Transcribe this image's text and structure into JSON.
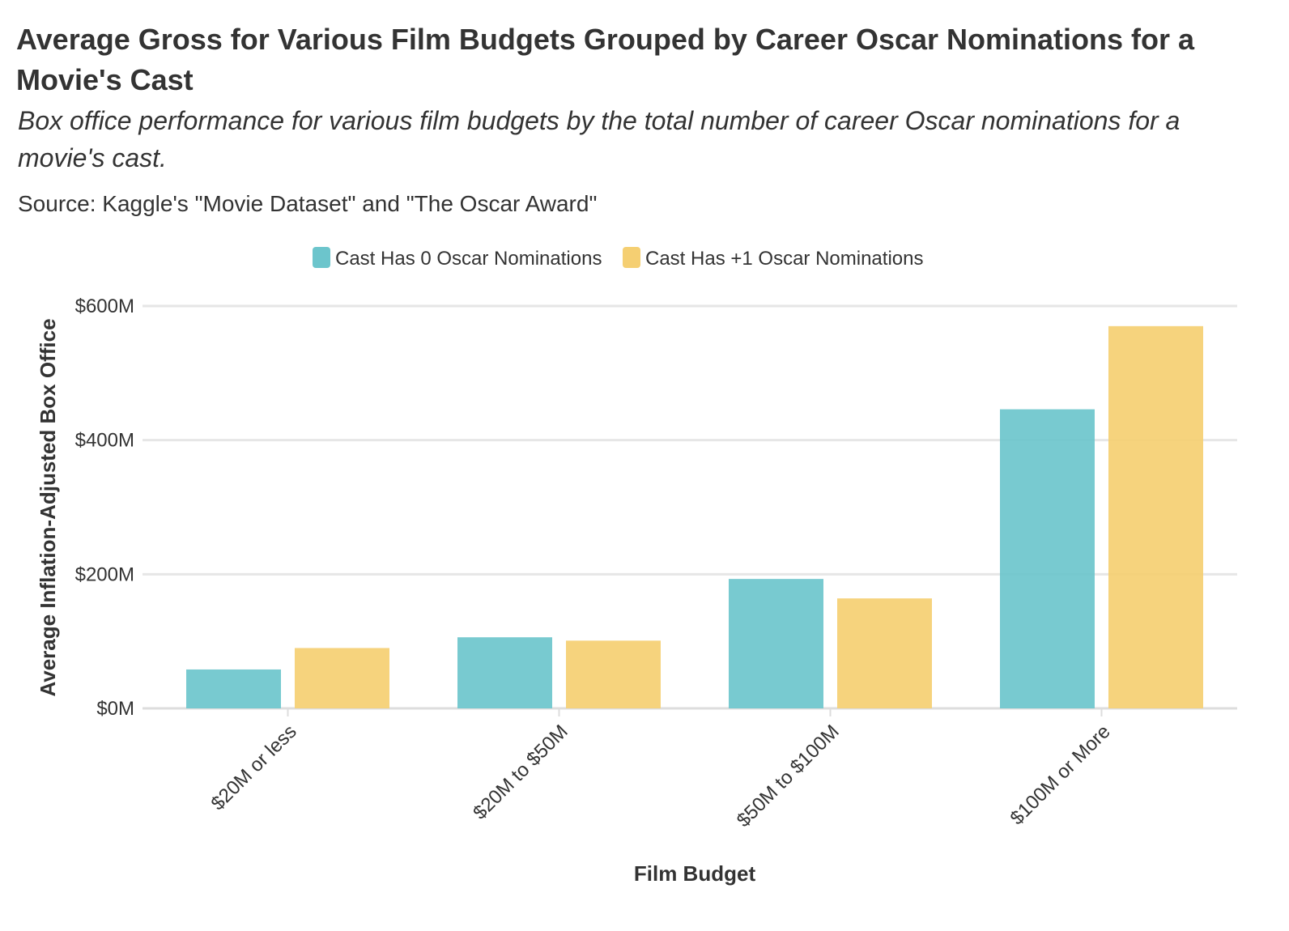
{
  "title": "Average Gross for Various Film Budgets Grouped by Career Oscar Nominations for a Movie's Cast",
  "subtitle": "Box office performance for various film budgets by the total number of career Oscar nominations for a movie's cast.",
  "source": "Source: Kaggle's \"Movie Dataset\" and \"The Oscar Award\"",
  "colors": {
    "series_0": "#6cc5cc",
    "series_1": "#f5cf72",
    "grid": "#e6e6e6",
    "axis": "#dddddd"
  },
  "chart_data": {
    "type": "bar",
    "categories": [
      "$20M or less",
      "$20M to $50M",
      "$50M to $100M",
      "$100M or More"
    ],
    "series": [
      {
        "name": "Cast Has 0 Oscar Nominations",
        "values": [
          58,
          106,
          193,
          446
        ]
      },
      {
        "name": "Cast Has +1 Oscar Nominations",
        "values": [
          90,
          101,
          164,
          570
        ]
      }
    ],
    "xlabel": "Film Budget",
    "ylabel": "Average Inflation-Adjusted Box Office",
    "ylim": [
      0,
      600
    ],
    "yticks": [
      0,
      200,
      400,
      600
    ],
    "ytick_labels": [
      "$0M",
      "$200M",
      "$400M",
      "$600M"
    ],
    "grid": true,
    "legend_position": "top-center"
  }
}
